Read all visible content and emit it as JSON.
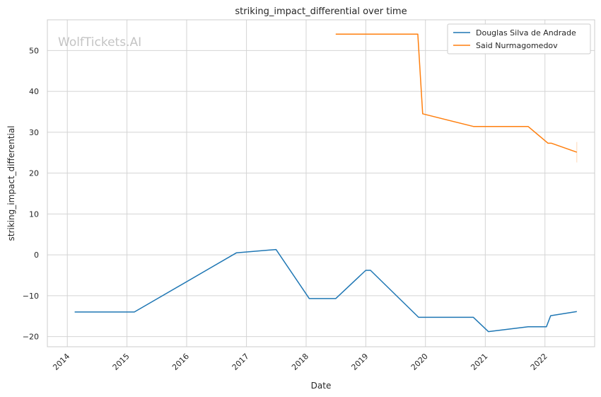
{
  "chart_data": {
    "type": "line",
    "title": "striking_impact_differential over time",
    "xlabel": "Date",
    "ylabel": "striking_impact_differential",
    "watermark": "WolfTickets.AI",
    "xlim": [
      "2013-09-01",
      "2022-11-01"
    ],
    "ylim": [
      -22.5,
      57.5
    ],
    "x_ticks": [
      "2014-01-01",
      "2015-01-01",
      "2016-01-01",
      "2017-01-01",
      "2018-01-01",
      "2019-01-01",
      "2020-01-01",
      "2021-01-01",
      "2022-01-01"
    ],
    "x_tick_labels": [
      "2014",
      "2015",
      "2016",
      "2017",
      "2018",
      "2019",
      "2020",
      "2021",
      "2022"
    ],
    "y_ticks": [
      -20,
      -10,
      0,
      10,
      20,
      30,
      40,
      50
    ],
    "y_tick_labels": [
      "−20",
      "−10",
      "0",
      "10",
      "20",
      "30",
      "40",
      "50"
    ],
    "grid": true,
    "legend_position": "top-right",
    "series": [
      {
        "name": "Douglas Silva de Andrade",
        "color": "#1f77b4",
        "points": [
          [
            "2014-02-15",
            -14.0
          ],
          [
            "2015-02-15",
            -14.0
          ],
          [
            "2016-11-01",
            0.5
          ],
          [
            "2017-07-01",
            1.3
          ],
          [
            "2018-01-20",
            -10.7
          ],
          [
            "2018-07-01",
            -10.7
          ],
          [
            "2019-01-01",
            -3.8
          ],
          [
            "2019-01-30",
            -3.8
          ],
          [
            "2019-11-20",
            -15.3
          ],
          [
            "2020-10-20",
            -15.3
          ],
          [
            "2021-01-20",
            -18.8
          ],
          [
            "2021-09-20",
            -17.6
          ],
          [
            "2022-01-10",
            -17.6
          ],
          [
            "2022-02-05",
            -14.9
          ],
          [
            "2022-07-15",
            -13.9
          ]
        ]
      },
      {
        "name": "Said Nurmagomedov",
        "color": "#ff7f0e",
        "points": [
          [
            "2018-07-01",
            54.0
          ],
          [
            "2019-11-15",
            54.0
          ],
          [
            "2019-12-15",
            34.5
          ],
          [
            "2020-10-20",
            31.4
          ],
          [
            "2021-09-20",
            31.4
          ],
          [
            "2022-01-20",
            27.3
          ],
          [
            "2022-02-10",
            27.3
          ],
          [
            "2022-07-15",
            25.1
          ]
        ]
      }
    ]
  }
}
